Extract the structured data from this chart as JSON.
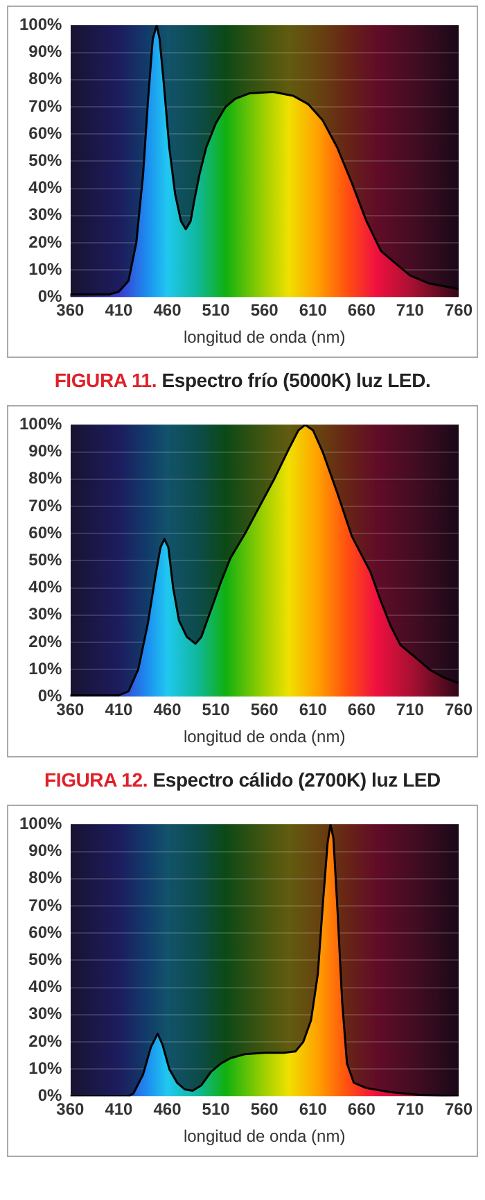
{
  "chart_data": [
    {
      "type": "area",
      "title": "FIGURA 11. Espectro frío (5000K) luz LED.",
      "xlabel": "longitud de onda (nm)",
      "xlim": [
        360,
        760
      ],
      "xticks": [
        360,
        410,
        460,
        510,
        560,
        610,
        660,
        710,
        760
      ],
      "ylim": [
        0,
        100
      ],
      "yticks": [
        {
          "value": 0,
          "label": "0%"
        },
        {
          "value": 10,
          "label": "10%"
        },
        {
          "value": 20,
          "label": "20%"
        },
        {
          "value": 30,
          "label": "30%"
        },
        {
          "value": 40,
          "label": "40%"
        },
        {
          "value": 50,
          "label": "50%"
        },
        {
          "value": 60,
          "label": "60%"
        },
        {
          "value": 70,
          "label": "70%"
        },
        {
          "value": 80,
          "label": "80%"
        },
        {
          "value": 90,
          "label": "90%"
        },
        {
          "value": 100,
          "label": "100%"
        }
      ],
      "grid": "y",
      "legend": false,
      "series": [
        {
          "color": "#000000",
          "x": [
            360,
            400,
            410,
            420,
            428,
            435,
            440,
            445,
            449,
            452,
            456,
            462,
            468,
            474,
            479,
            484,
            488,
            493,
            500,
            510,
            520,
            530,
            545,
            569,
            590,
            605,
            620,
            635,
            650,
            665,
            680,
            693,
            710,
            730,
            760
          ],
          "values": [
            1,
            1,
            2,
            6,
            20,
            45,
            72,
            95,
            100,
            95,
            80,
            55,
            38,
            28,
            25,
            28,
            36,
            45,
            55,
            64,
            70,
            73,
            75,
            75.5,
            74,
            71,
            65,
            55,
            42,
            28,
            17,
            13,
            8,
            5,
            3
          ]
        }
      ]
    },
    {
      "type": "area",
      "title": "FIGURA 12. Espectro cálido (2700K) luz LED",
      "xlabel": "longitud de onda (nm)",
      "xlim": [
        360,
        760
      ],
      "xticks": [
        360,
        410,
        460,
        510,
        560,
        610,
        660,
        710,
        760
      ],
      "ylim": [
        0,
        100
      ],
      "yticks": [
        {
          "value": 0,
          "label": "0%"
        },
        {
          "value": 10,
          "label": "10%"
        },
        {
          "value": 20,
          "label": "20%"
        },
        {
          "value": 30,
          "label": "30%"
        },
        {
          "value": 40,
          "label": "40%"
        },
        {
          "value": 50,
          "label": "50%"
        },
        {
          "value": 60,
          "label": "60%"
        },
        {
          "value": 70,
          "label": "70%"
        },
        {
          "value": 80,
          "label": "80%"
        },
        {
          "value": 90,
          "label": "90%"
        },
        {
          "value": 100,
          "label": "100%"
        }
      ],
      "grid": "y",
      "legend": false,
      "series": [
        {
          "color": "#000000",
          "x": [
            360,
            410,
            420,
            430,
            440,
            448,
            453,
            457,
            461,
            466,
            472,
            480,
            489,
            495,
            505,
            515,
            525,
            540,
            555,
            570,
            585,
            595,
            602,
            610,
            620,
            635,
            650,
            669,
            680,
            690,
            700,
            717,
            730,
            745,
            760
          ],
          "values": [
            0.5,
            0.5,
            2,
            10,
            27,
            45,
            55,
            58,
            55,
            40,
            28,
            22,
            19.5,
            22,
            32,
            42,
            51,
            60,
            70,
            80,
            91,
            98,
            100,
            98,
            90,
            75,
            59,
            46,
            35,
            26,
            19,
            14,
            10,
            7,
            5
          ]
        }
      ]
    },
    {
      "type": "area",
      "xlabel": "longitud de onda (nm)",
      "xlim": [
        360,
        760
      ],
      "xticks": [
        360,
        410,
        460,
        510,
        560,
        610,
        660,
        710,
        760
      ],
      "ylim": [
        0,
        100
      ],
      "yticks": [
        {
          "value": 0,
          "label": "0%"
        },
        {
          "value": 10,
          "label": "10%"
        },
        {
          "value": 20,
          "label": "20%"
        },
        {
          "value": 30,
          "label": "30%"
        },
        {
          "value": 40,
          "label": "40%"
        },
        {
          "value": 50,
          "label": "50%"
        },
        {
          "value": 60,
          "label": "60%"
        },
        {
          "value": 70,
          "label": "70%"
        },
        {
          "value": 80,
          "label": "80%"
        },
        {
          "value": 90,
          "label": "90%"
        },
        {
          "value": 100,
          "label": "100%"
        }
      ],
      "grid": "y",
      "legend": false,
      "series": [
        {
          "color": "#000000",
          "x": [
            360,
            420,
            425,
            435,
            443,
            450,
            455,
            462,
            470,
            478,
            486,
            495,
            505,
            515,
            525,
            540,
            560,
            580,
            592,
            600,
            608,
            615,
            620,
            625,
            628,
            631,
            635,
            640,
            645,
            652,
            665,
            690,
            720,
            760
          ],
          "values": [
            0,
            0,
            1,
            8,
            18,
            23,
            19,
            10,
            5,
            2.5,
            2,
            4,
            9,
            12,
            14,
            15.5,
            16,
            16,
            16.5,
            20,
            28,
            45,
            70,
            93,
            100,
            95,
            70,
            35,
            12,
            5,
            3,
            1.5,
            0.5,
            0
          ]
        }
      ]
    }
  ]
}
